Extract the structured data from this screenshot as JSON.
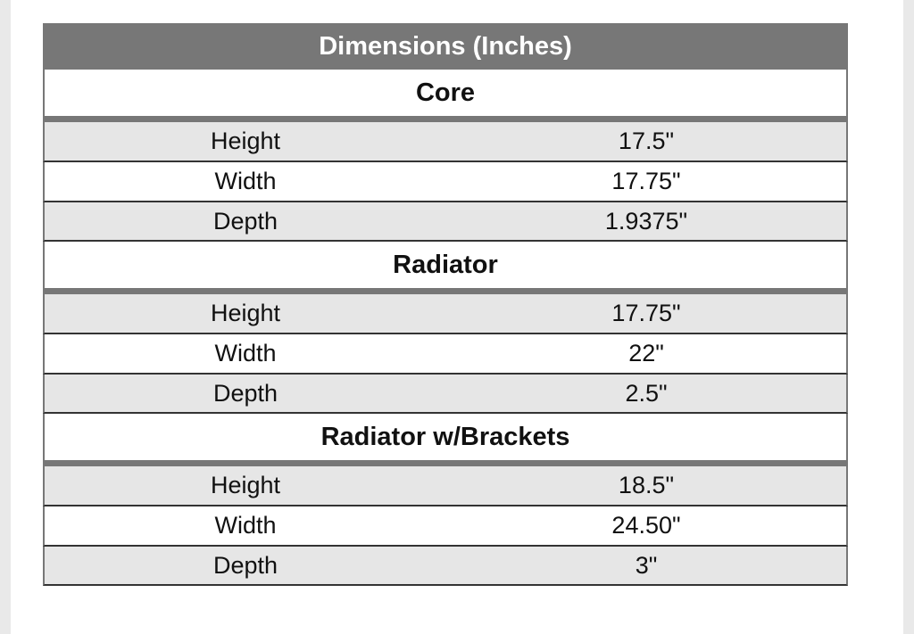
{
  "table": {
    "title": "Dimensions (Inches)",
    "sections": [
      {
        "name": "Core",
        "rows": [
          [
            "Height",
            "17.5\""
          ],
          [
            "Width",
            "17.75\""
          ],
          [
            "Depth",
            "1.9375\""
          ]
        ]
      },
      {
        "name": "Radiator",
        "rows": [
          [
            "Height",
            "17.75\""
          ],
          [
            "Width",
            "22\""
          ],
          [
            "Depth",
            "2.5\""
          ]
        ]
      },
      {
        "name": "Radiator w/Brackets",
        "rows": [
          [
            "Height",
            "18.5\""
          ],
          [
            "Width",
            "24.50\""
          ],
          [
            "Depth",
            "3\""
          ]
        ]
      }
    ]
  }
}
